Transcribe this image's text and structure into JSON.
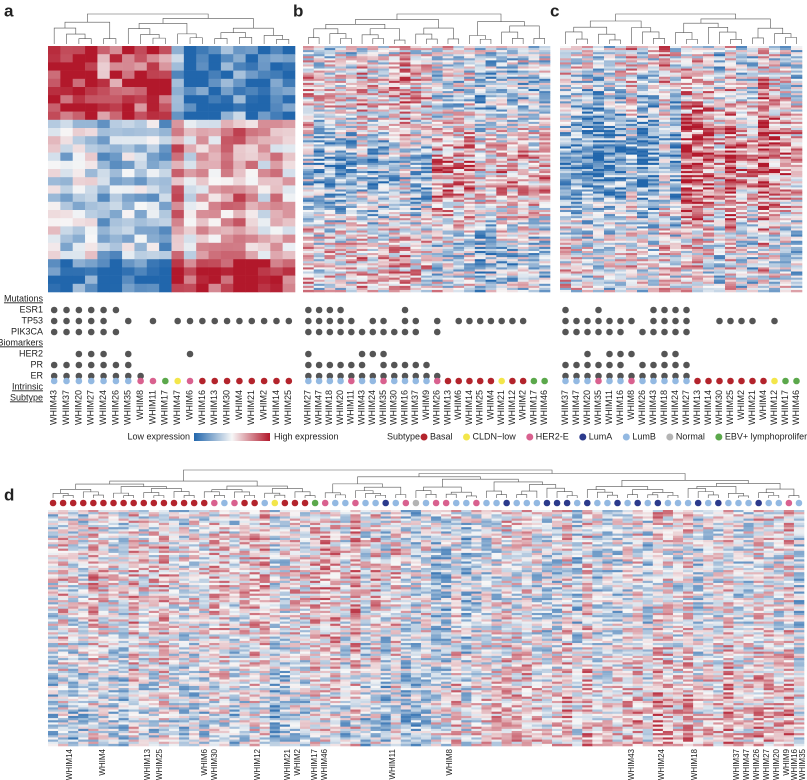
{
  "annotation_headers": {
    "mutations": "Mutations",
    "biomarkers": "Biomarkers",
    "intrinsic": "Intrinsic",
    "subtype": "Subtype"
  },
  "mutation_rows": [
    "ESR1",
    "TP53",
    "PIK3CA"
  ],
  "biomarker_rows": [
    "HER2",
    "PR",
    "ER"
  ],
  "expression_legend": {
    "low": "Low expression",
    "high": "High expression"
  },
  "subtype_legend": {
    "title": "Subtype",
    "items": [
      {
        "name": "Basal",
        "color": "#b3242c"
      },
      {
        "name": "CLDN−low",
        "color": "#f3e64a"
      },
      {
        "name": "HER2-E",
        "color": "#d9618f"
      },
      {
        "name": "LumA",
        "color": "#2b3a8c"
      },
      {
        "name": "LumB",
        "color": "#93b9e2"
      },
      {
        "name": "Normal",
        "color": "#b4b4b4"
      },
      {
        "name": "EBV+ lymphoproliferation",
        "color": "#5ba84b"
      }
    ]
  },
  "panels": [
    {
      "label": "a",
      "samples": [
        "WHIM43",
        "WHIM37",
        "WHIM20",
        "WHIM27",
        "WHIM24",
        "WHIM26",
        "WHIM35",
        "WHIM8",
        "WHIM11",
        "WHIM17",
        "WHIM47",
        "WHIM6",
        "WHIM16",
        "WHIM13",
        "WHIM30",
        "WHIM4",
        "WHIM21",
        "WHIM2",
        "WHIM14",
        "WHIM25"
      ],
      "subtypes": [
        4,
        4,
        4,
        4,
        4,
        4,
        4,
        2,
        2,
        6,
        1,
        2,
        0,
        0,
        0,
        0,
        0,
        0,
        0,
        0
      ],
      "mutations": [
        [
          1,
          1,
          1,
          1,
          1,
          1,
          0,
          0,
          0,
          0,
          0,
          0,
          0,
          0,
          0,
          0,
          0,
          0,
          0,
          0
        ],
        [
          1,
          1,
          1,
          1,
          1,
          0,
          1,
          0,
          1,
          0,
          1,
          1,
          1,
          1,
          1,
          1,
          1,
          1,
          1,
          1
        ],
        [
          1,
          1,
          1,
          1,
          1,
          1,
          0,
          0,
          0,
          0,
          0,
          0,
          0,
          0,
          0,
          0,
          0,
          0,
          0,
          0
        ]
      ],
      "biomarkers": [
        [
          0,
          0,
          1,
          1,
          1,
          0,
          1,
          0,
          0,
          0,
          0,
          1,
          0,
          0,
          0,
          0,
          0,
          0,
          0,
          0
        ],
        [
          1,
          1,
          1,
          1,
          1,
          1,
          1,
          0,
          0,
          0,
          0,
          0,
          0,
          0,
          0,
          0,
          0,
          0,
          0,
          0
        ],
        [
          1,
          1,
          1,
          1,
          1,
          1,
          1,
          1,
          0,
          0,
          0,
          0,
          0,
          0,
          0,
          0,
          0,
          0,
          0,
          0
        ]
      ]
    },
    {
      "label": "b",
      "samples": [
        "WHIM27",
        "WHIM47",
        "WHIM18",
        "WHIM20",
        "WHIM11",
        "WHIM43",
        "WHIM24",
        "WHIM35",
        "WHIM30",
        "WHIM16",
        "WHIM37",
        "WHIM9",
        "WHIM26",
        "WHIM13",
        "WHIM6",
        "WHIM14",
        "WHIM25",
        "WHIM4",
        "WHIM21",
        "WHIM12",
        "WHIM2",
        "WHIM17",
        "WHIM46"
      ],
      "subtypes": [
        4,
        4,
        4,
        4,
        2,
        4,
        4,
        2,
        4,
        4,
        4,
        4,
        2,
        0,
        0,
        0,
        0,
        0,
        1,
        0,
        0,
        6,
        6
      ],
      "mutations": [
        [
          1,
          1,
          1,
          1,
          0,
          0,
          0,
          0,
          0,
          1,
          0,
          0,
          0,
          0,
          0,
          0,
          0,
          0,
          0,
          0,
          0,
          0,
          0
        ],
        [
          1,
          1,
          1,
          1,
          1,
          0,
          1,
          1,
          0,
          1,
          1,
          0,
          1,
          0,
          1,
          1,
          1,
          1,
          1,
          1,
          1,
          0,
          0
        ],
        [
          1,
          1,
          1,
          1,
          1,
          1,
          1,
          1,
          1,
          1,
          1,
          0,
          1,
          0,
          0,
          0,
          0,
          0,
          0,
          0,
          0,
          0,
          0
        ]
      ],
      "biomarkers": [
        [
          1,
          0,
          0,
          0,
          0,
          1,
          1,
          1,
          0,
          0,
          0,
          0,
          0,
          0,
          0,
          0,
          0,
          0,
          0,
          0,
          0,
          0,
          0
        ],
        [
          1,
          1,
          1,
          1,
          1,
          1,
          0,
          1,
          1,
          1,
          1,
          1,
          0,
          0,
          0,
          0,
          0,
          0,
          0,
          0,
          0,
          0,
          0
        ],
        [
          1,
          1,
          1,
          1,
          1,
          1,
          1,
          1,
          1,
          1,
          1,
          1,
          1,
          0,
          0,
          0,
          0,
          0,
          0,
          0,
          0,
          0,
          0
        ]
      ]
    },
    {
      "label": "c",
      "samples": [
        "WHIM37",
        "WHIM47",
        "WHIM20",
        "WHIM35",
        "WHIM11",
        "WHIM16",
        "WHIM8",
        "WHIM26",
        "WHIM43",
        "WHIM18",
        "WHIM24",
        "WHIM27",
        "WHIM13",
        "WHIM14",
        "WHIM30",
        "WHIM25",
        "WHIM2",
        "WHIM21",
        "WHIM4",
        "WHIM12",
        "WHIM17",
        "WHIM46"
      ],
      "subtypes": [
        4,
        4,
        4,
        2,
        4,
        4,
        2,
        4,
        4,
        4,
        4,
        4,
        0,
        0,
        0,
        0,
        0,
        0,
        0,
        1,
        6,
        6
      ],
      "mutations": [
        [
          1,
          0,
          0,
          1,
          0,
          0,
          0,
          0,
          1,
          1,
          1,
          1,
          0,
          0,
          0,
          0,
          0,
          0,
          0,
          0,
          0,
          0
        ],
        [
          1,
          1,
          1,
          1,
          1,
          1,
          1,
          0,
          1,
          1,
          1,
          1,
          0,
          0,
          1,
          1,
          1,
          1,
          0,
          1,
          0,
          0
        ],
        [
          1,
          1,
          1,
          1,
          1,
          1,
          0,
          1,
          1,
          1,
          1,
          1,
          0,
          0,
          0,
          0,
          0,
          0,
          0,
          0,
          0,
          0
        ]
      ],
      "biomarkers": [
        [
          0,
          0,
          1,
          0,
          1,
          1,
          1,
          0,
          0,
          1,
          1,
          0,
          0,
          0,
          0,
          0,
          0,
          0,
          0,
          0,
          0,
          0
        ],
        [
          1,
          1,
          1,
          1,
          1,
          1,
          0,
          1,
          1,
          1,
          1,
          1,
          0,
          0,
          0,
          0,
          0,
          0,
          0,
          0,
          0,
          0
        ],
        [
          1,
          1,
          1,
          1,
          1,
          1,
          1,
          1,
          1,
          1,
          1,
          1,
          0,
          0,
          0,
          0,
          0,
          0,
          0,
          0,
          0,
          0
        ]
      ]
    }
  ],
  "panel_d": {
    "label": "d",
    "subtypes": [
      0,
      0,
      0,
      0,
      0,
      0,
      0,
      0,
      0,
      0,
      0,
      0,
      0,
      0,
      0,
      0,
      2,
      4,
      2,
      0,
      0,
      4,
      1,
      0,
      0,
      0,
      6,
      2,
      4,
      4,
      2,
      4,
      4,
      3,
      4,
      2,
      5,
      4,
      2,
      2,
      4,
      4,
      2,
      4,
      4,
      3,
      4,
      4,
      4,
      3,
      3,
      3,
      4,
      3,
      4,
      4,
      3,
      4,
      3,
      4,
      3,
      4,
      4,
      4,
      3,
      4,
      3,
      4,
      4,
      4,
      3,
      4,
      4,
      2,
      4
    ],
    "labels": [
      "WHIM14",
      "WHIM4",
      "WHIM13",
      "WHIM25",
      "WHIM6",
      "WHIM30",
      "WHIM12",
      "WHIM21",
      "WHIM2",
      "WHIM17",
      "WHIM46",
      "WHIM11",
      "WHIM8",
      "WHIM43",
      "WHIM24",
      "WHIM18",
      "WHIM37",
      "WHIM47",
      "WHIM26",
      "WHIM27",
      "WHIM20",
      "WHIM9",
      "WHIM16",
      "WHIM35"
    ]
  }
}
